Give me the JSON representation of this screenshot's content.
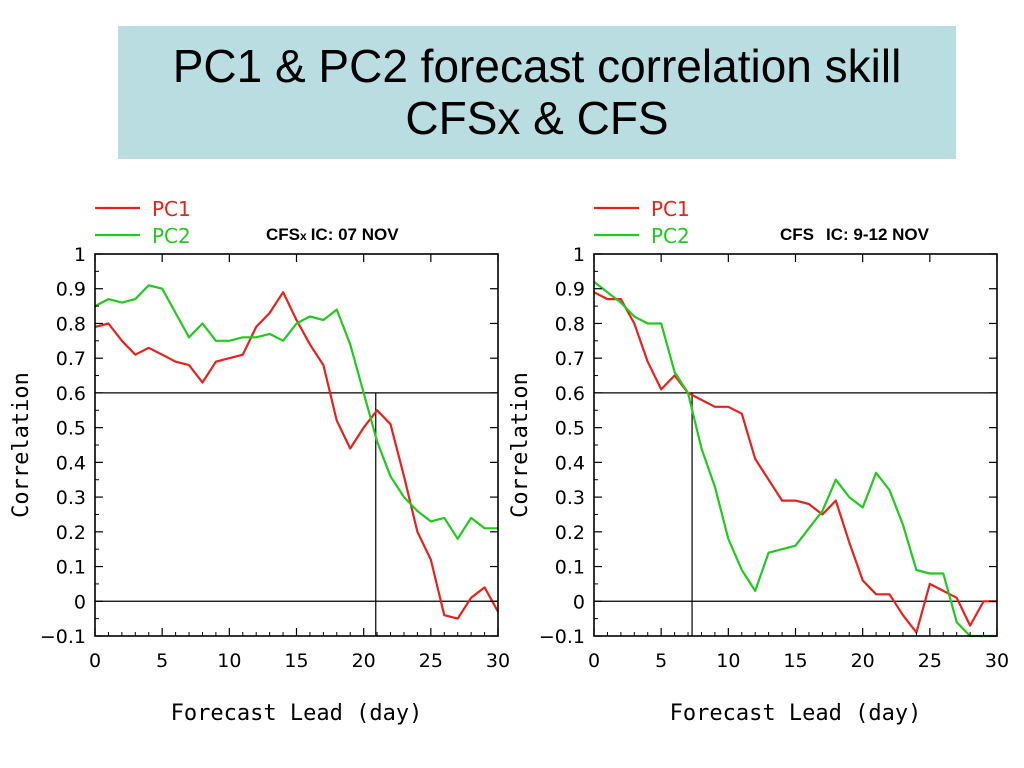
{
  "title": {
    "line1": "PC1 & PC2 forecast correlation skill",
    "line2": "CFSx & CFS"
  },
  "colors": {
    "pc1": "#e8211b",
    "pc2": "#22c91e"
  },
  "chart_data": [
    {
      "type": "line",
      "annotation": {
        "model": "CFS",
        "model_sub": "x",
        "ic": "IC: 07 NOV"
      },
      "xlabel": "Forecast Lead (day)",
      "ylabel": "Correlation",
      "xlim": [
        0,
        30
      ],
      "ylim": [
        -0.1,
        1
      ],
      "xticks": [
        0,
        5,
        10,
        15,
        20,
        25,
        30
      ],
      "yticks": [
        -0.1,
        0,
        0.1,
        0.2,
        0.3,
        0.4,
        0.5,
        0.6,
        0.7,
        0.8,
        0.9,
        1
      ],
      "ytick_labels": [
        "−0.1",
        "0",
        "0.1",
        "0.2",
        "0.3",
        "0.4",
        "0.5",
        "0.6",
        "0.7",
        "0.8",
        "0.9",
        "1"
      ],
      "hlines": [
        0,
        0.6
      ],
      "vline": {
        "x": 20.9,
        "y": 0.6
      },
      "legend": "top-left",
      "series": [
        {
          "name": "PC1",
          "x": [
            0,
            1,
            2,
            3,
            4,
            5,
            6,
            7,
            8,
            9,
            10,
            11,
            12,
            13,
            14,
            15,
            16,
            17,
            18,
            19,
            20,
            21,
            22,
            23,
            24,
            25,
            26,
            27,
            28,
            29,
            30
          ],
          "y": [
            0.79,
            0.8,
            0.75,
            0.71,
            0.73,
            0.71,
            0.69,
            0.68,
            0.63,
            0.69,
            0.7,
            0.71,
            0.79,
            0.83,
            0.89,
            0.81,
            0.74,
            0.68,
            0.52,
            0.44,
            0.5,
            0.55,
            0.51,
            0.36,
            0.2,
            0.12,
            -0.04,
            -0.05,
            0.01,
            0.04,
            -0.03
          ]
        },
        {
          "name": "PC2",
          "x": [
            0,
            1,
            2,
            3,
            4,
            5,
            6,
            7,
            8,
            9,
            10,
            11,
            12,
            13,
            14,
            15,
            16,
            17,
            18,
            19,
            20,
            21,
            22,
            23,
            24,
            25,
            26,
            27,
            28,
            29,
            30
          ],
          "y": [
            0.85,
            0.87,
            0.86,
            0.87,
            0.91,
            0.9,
            0.83,
            0.76,
            0.8,
            0.75,
            0.75,
            0.76,
            0.76,
            0.77,
            0.75,
            0.8,
            0.82,
            0.81,
            0.84,
            0.74,
            0.6,
            0.46,
            0.36,
            0.3,
            0.26,
            0.23,
            0.24,
            0.18,
            0.24,
            0.21,
            0.21
          ]
        }
      ]
    },
    {
      "type": "line",
      "annotation": {
        "model": "CFS",
        "model_sub": "",
        "ic": "IC: 9-12 NOV"
      },
      "xlabel": "Forecast Lead (day)",
      "ylabel": "Correlation",
      "xlim": [
        0,
        30
      ],
      "ylim": [
        -0.1,
        1
      ],
      "xticks": [
        0,
        5,
        10,
        15,
        20,
        25,
        30
      ],
      "yticks": [
        -0.1,
        0,
        0.1,
        0.2,
        0.3,
        0.4,
        0.5,
        0.6,
        0.7,
        0.8,
        0.9,
        1
      ],
      "ytick_labels": [
        "−0.1",
        "0",
        "0.1",
        "0.2",
        "0.3",
        "0.4",
        "0.5",
        "0.6",
        "0.7",
        "0.8",
        "0.9",
        "1"
      ],
      "hlines": [
        0,
        0.6
      ],
      "vline": {
        "x": 7.3,
        "y": 0.6
      },
      "legend": "top-left",
      "series": [
        {
          "name": "PC1",
          "x": [
            0,
            1,
            2,
            3,
            4,
            5,
            6,
            7,
            8,
            9,
            10,
            11,
            12,
            13,
            14,
            15,
            16,
            17,
            18,
            19,
            20,
            21,
            22,
            23,
            24,
            25,
            26,
            27,
            28,
            29,
            30
          ],
          "y": [
            0.89,
            0.87,
            0.87,
            0.8,
            0.69,
            0.61,
            0.65,
            0.6,
            0.58,
            0.56,
            0.56,
            0.54,
            0.41,
            0.35,
            0.29,
            0.29,
            0.28,
            0.25,
            0.29,
            0.17,
            0.06,
            0.02,
            0.02,
            -0.04,
            -0.09,
            0.05,
            0.03,
            0.01,
            -0.07,
            0.0,
            0.0
          ]
        },
        {
          "name": "PC2",
          "x": [
            0,
            1,
            2,
            3,
            4,
            5,
            6,
            7,
            8,
            9,
            10,
            11,
            12,
            13,
            14,
            15,
            16,
            17,
            18,
            19,
            20,
            21,
            22,
            23,
            24,
            25,
            26,
            27,
            28,
            29,
            30
          ],
          "y": [
            0.92,
            0.89,
            0.86,
            0.82,
            0.8,
            0.8,
            0.66,
            0.6,
            0.44,
            0.33,
            0.18,
            0.09,
            0.03,
            0.14,
            0.15,
            0.16,
            0.21,
            0.26,
            0.35,
            0.3,
            0.27,
            0.37,
            0.32,
            0.22,
            0.09,
            0.08,
            0.08,
            -0.06,
            -0.1,
            -0.1,
            -0.1
          ]
        }
      ]
    }
  ]
}
